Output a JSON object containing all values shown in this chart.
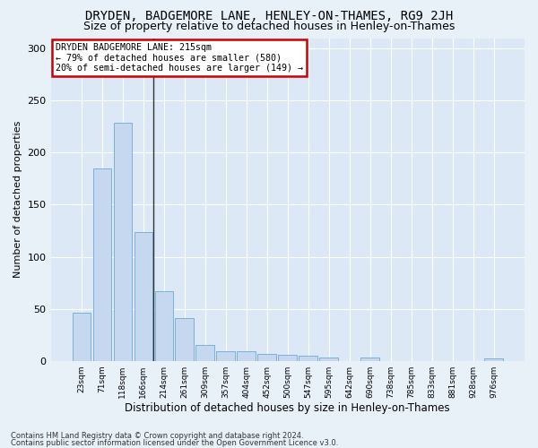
{
  "title": "DRYDEN, BADGEMORE LANE, HENLEY-ON-THAMES, RG9 2JH",
  "subtitle": "Size of property relative to detached houses in Henley-on-Thames",
  "xlabel": "Distribution of detached houses by size in Henley-on-Thames",
  "ylabel": "Number of detached properties",
  "footnote1": "Contains HM Land Registry data © Crown copyright and database right 2024.",
  "footnote2": "Contains public sector information licensed under the Open Government Licence v3.0.",
  "bar_labels": [
    "23sqm",
    "71sqm",
    "118sqm",
    "166sqm",
    "214sqm",
    "261sqm",
    "309sqm",
    "357sqm",
    "404sqm",
    "452sqm",
    "500sqm",
    "547sqm",
    "595sqm",
    "642sqm",
    "690sqm",
    "738sqm",
    "785sqm",
    "833sqm",
    "881sqm",
    "928sqm",
    "976sqm"
  ],
  "bar_values": [
    46,
    185,
    229,
    124,
    67,
    41,
    15,
    9,
    9,
    7,
    6,
    5,
    3,
    0,
    3,
    0,
    0,
    0,
    0,
    0,
    2
  ],
  "bar_color": "#c5d8f0",
  "bar_edge_color": "#6aaad4",
  "vline_index": 3.5,
  "vline_color": "#333333",
  "annotation_title": "DRYDEN BADGEMORE LANE: 215sqm",
  "annotation_line1": "← 79% of detached houses are smaller (580)",
  "annotation_line2": "20% of semi-detached houses are larger (149) →",
  "annotation_box_color": "#ffffff",
  "annotation_box_edge": "#cc0000",
  "ylim": [
    0,
    310
  ],
  "yticks": [
    0,
    50,
    100,
    150,
    200,
    250,
    300
  ],
  "fig_bg_color": "#e8f0f8",
  "plot_bg_color": "#dce8f5",
  "title_fontsize": 10,
  "subtitle_fontsize": 9,
  "ylabel_fontsize": 8,
  "xlabel_fontsize": 8.5
}
